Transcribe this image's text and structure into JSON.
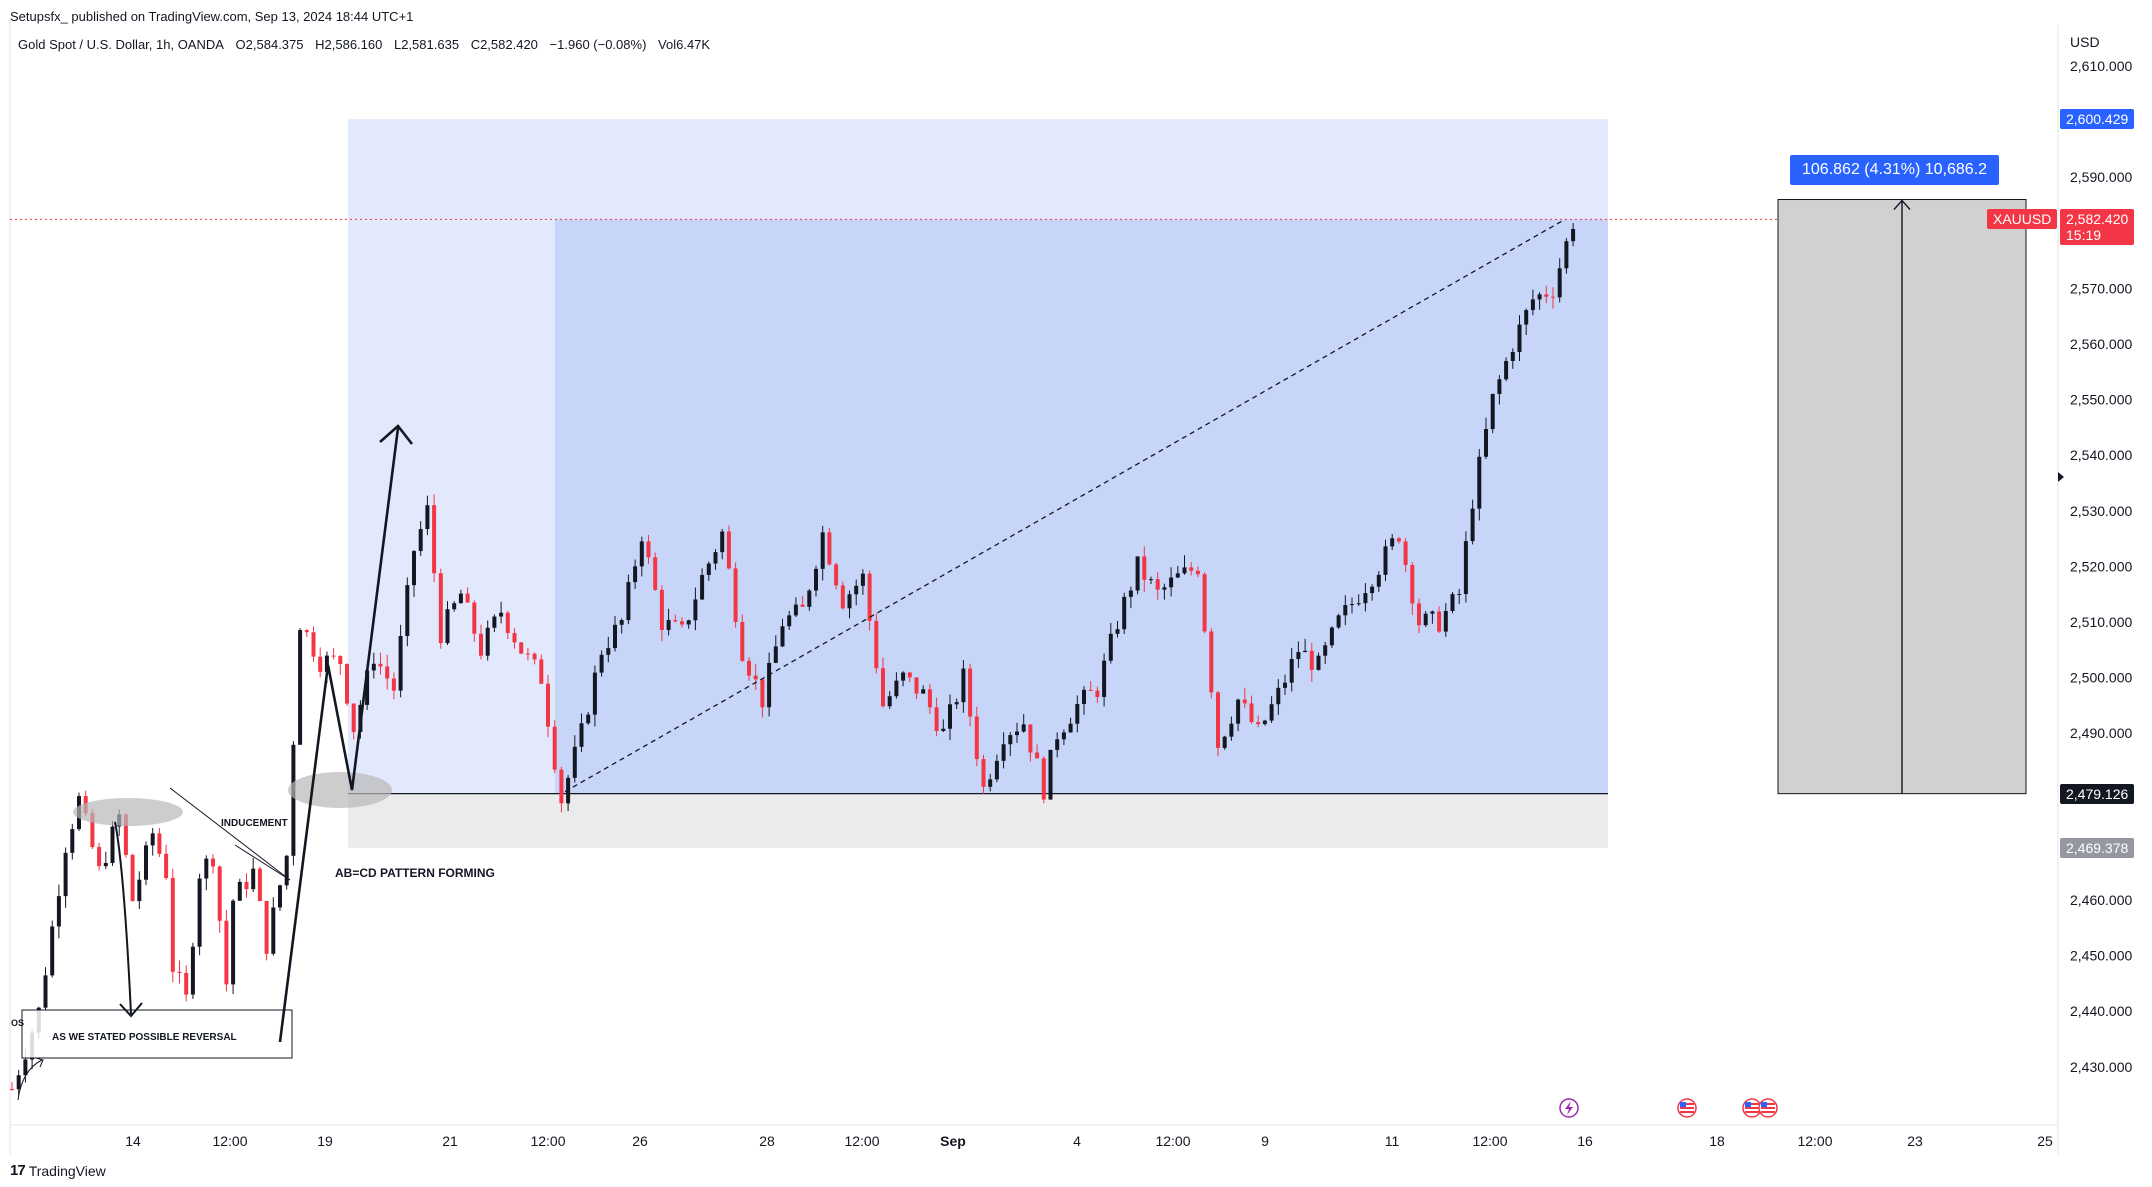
{
  "header": {
    "publisher": "Setupsfx_ published on TradingView.com, Sep 13, 2024 18:44 UTC+1",
    "symbol": "Gold Spot / U.S. Dollar, 1h, OANDA",
    "open": "O2,584.375",
    "high": "H2,586.160",
    "low": "L2,581.635",
    "close": "C2,582.420",
    "change": "−1.960 (−0.08%)",
    "volume": "Vol6.47K"
  },
  "price_axis": {
    "currency": "USD",
    "tick_labels": [
      "2,610.000",
      "2,600.000",
      "2,590.000",
      "2,580.000",
      "2,570.000",
      "2,560.000",
      "2,550.000",
      "2,540.000",
      "2,530.000",
      "2,520.000",
      "2,510.000",
      "2,500.000",
      "2,490.000",
      "2,480.000",
      "2,470.000",
      "2,460.000",
      "2,450.000",
      "2,440.000",
      "2,430.000"
    ],
    "markers": {
      "upper_zone": "2,600.429",
      "current_price": "2,582.420",
      "countdown": "15:19",
      "lower_line": "2,479.126",
      "lower_zone": "2,469.378"
    },
    "symbol_tag": "XAUUSD"
  },
  "time_axis": {
    "labels": [
      "14",
      "12:00",
      "19",
      "21",
      "12:00",
      "26",
      "28",
      "12:00",
      "Sep",
      "4",
      "12:00",
      "9",
      "11",
      "12:00",
      "16",
      "18",
      "12:00",
      "23",
      "25"
    ]
  },
  "annotations": {
    "inducement": "INDUCEMENT",
    "abcd": "AB=CD PATTERN FORMING",
    "reversal": "AS WE STATED POSSIBLE REVERSAL",
    "cut_label": "OS",
    "measure": "106.862 (4.31%) 10,686.2"
  },
  "colors": {
    "bull": "#131722",
    "bear": "#f23645",
    "zone_light": "#e3e9fc",
    "zone_mid": "#c7d6f8",
    "zone_gray": "#ebebee",
    "measure_box": "#d1d1d1",
    "measure_tag": "#2962ff",
    "price_red": "#f23645",
    "axis_dark": "#131722",
    "axis_gray": "#787b86",
    "upper_tag": "#2962ff"
  },
  "footer": {
    "brand": "TradingView"
  },
  "chart_data": {
    "type": "candlestick",
    "title": "Gold Spot / U.S. Dollar, 1h, OANDA",
    "ylim": [
      2422,
      2614
    ],
    "x_labels": [
      "14",
      "12:00",
      "19",
      "21",
      "12:00",
      "26",
      "28",
      "12:00",
      "Sep",
      "4",
      "12:00",
      "9",
      "11",
      "12:00",
      "16",
      "18",
      "12:00",
      "23",
      "25"
    ],
    "price_path": [
      [
        0,
        2426
      ],
      [
        4,
        2440
      ],
      [
        8,
        2470
      ],
      [
        10,
        2478
      ],
      [
        13,
        2465
      ],
      [
        16,
        2475
      ],
      [
        18,
        2460
      ],
      [
        21,
        2472
      ],
      [
        23,
        2465
      ],
      [
        24,
        2448
      ],
      [
        26,
        2442
      ],
      [
        28,
        2465
      ],
      [
        30,
        2468
      ],
      [
        32,
        2445
      ],
      [
        33,
        2460
      ],
      [
        36,
        2465
      ],
      [
        38,
        2452
      ],
      [
        41,
        2468
      ],
      [
        43,
        2510
      ],
      [
        46,
        2503
      ],
      [
        49,
        2503
      ],
      [
        51,
        2491
      ],
      [
        54,
        2504
      ],
      [
        57,
        2498
      ],
      [
        60,
        2523
      ],
      [
        62,
        2530
      ],
      [
        64,
        2508
      ],
      [
        67,
        2515
      ],
      [
        70,
        2505
      ],
      [
        73,
        2512
      ],
      [
        76,
        2505
      ],
      [
        79,
        2500
      ],
      [
        82,
        2478
      ],
      [
        85,
        2490
      ],
      [
        88,
        2505
      ],
      [
        91,
        2510
      ],
      [
        94,
        2526
      ],
      [
        97,
        2510
      ],
      [
        100,
        2508
      ],
      [
        103,
        2518
      ],
      [
        106,
        2526
      ],
      [
        109,
        2505
      ],
      [
        112,
        2496
      ],
      [
        115,
        2510
      ],
      [
        118,
        2512
      ],
      [
        121,
        2526
      ],
      [
        124,
        2514
      ],
      [
        127,
        2518
      ],
      [
        130,
        2495
      ],
      [
        133,
        2500
      ],
      [
        136,
        2497
      ],
      [
        139,
        2490
      ],
      [
        142,
        2500
      ],
      [
        145,
        2480
      ],
      [
        148,
        2490
      ],
      [
        151,
        2492
      ],
      [
        154,
        2480
      ],
      [
        156,
        2490
      ],
      [
        159,
        2495
      ],
      [
        162,
        2498
      ],
      [
        165,
        2510
      ],
      [
        168,
        2520
      ],
      [
        171,
        2515
      ],
      [
        174,
        2518
      ],
      [
        177,
        2520
      ],
      [
        180,
        2488
      ],
      [
        183,
        2496
      ],
      [
        186,
        2490
      ],
      [
        189,
        2497
      ],
      [
        192,
        2505
      ],
      [
        195,
        2502
      ],
      [
        198,
        2510
      ],
      [
        201,
        2515
      ],
      [
        204,
        2520
      ],
      [
        207,
        2526
      ],
      [
        210,
        2510
      ],
      [
        213,
        2510
      ],
      [
        216,
        2515
      ],
      [
        218,
        2532
      ],
      [
        221,
        2550
      ],
      [
        224,
        2560
      ],
      [
        227,
        2568
      ],
      [
        230,
        2570
      ],
      [
        233,
        2582
      ]
    ],
    "projection_line": {
      "from": [
        "Aug 23",
        2479.126
      ],
      "to": [
        "Sep 13",
        2582.42
      ]
    },
    "zones": [
      {
        "top": 2600.429,
        "bottom": 2469.378
      },
      {
        "top": 2582.42,
        "bottom": 2479.126
      }
    ],
    "measure": {
      "from": 2479.126,
      "to": 2585.988,
      "label": "106.862 (4.31%) 10,686.2"
    }
  }
}
